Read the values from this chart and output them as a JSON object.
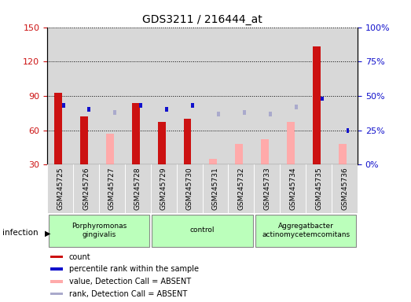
{
  "title": "GDS3211 / 216444_at",
  "samples": [
    "GSM245725",
    "GSM245726",
    "GSM245727",
    "GSM245728",
    "GSM245729",
    "GSM245730",
    "GSM245731",
    "GSM245732",
    "GSM245733",
    "GSM245734",
    "GSM245735",
    "GSM245736"
  ],
  "count": [
    93,
    72,
    null,
    84,
    67,
    70,
    null,
    null,
    null,
    null,
    133,
    null
  ],
  "percentile_rank": [
    43,
    40,
    null,
    43,
    40,
    43,
    null,
    null,
    null,
    null,
    48,
    25
  ],
  "value_absent": [
    null,
    null,
    57,
    null,
    null,
    null,
    35,
    48,
    52,
    67,
    null,
    48
  ],
  "rank_absent": [
    null,
    null,
    38,
    null,
    null,
    null,
    37,
    38,
    37,
    42,
    null,
    null
  ],
  "ylim_left": [
    30,
    150
  ],
  "yticks_left": [
    30,
    60,
    90,
    120,
    150
  ],
  "ylim_right": [
    0,
    100
  ],
  "yticks_right": [
    0,
    25,
    50,
    75,
    100
  ],
  "group_ranges": [
    [
      0,
      3,
      "Porphyromonas\ngingivalis"
    ],
    [
      4,
      7,
      "control"
    ],
    [
      8,
      11,
      "Aggregatbacter\nactinomycetemcomitans"
    ]
  ],
  "count_color": "#cc1111",
  "percentile_color": "#1111cc",
  "value_absent_color": "#ffaaaa",
  "rank_absent_color": "#aaaacc",
  "bar_width": 0.3,
  "bg_color": "#d8d8d8",
  "group_color": "#bbffbb"
}
